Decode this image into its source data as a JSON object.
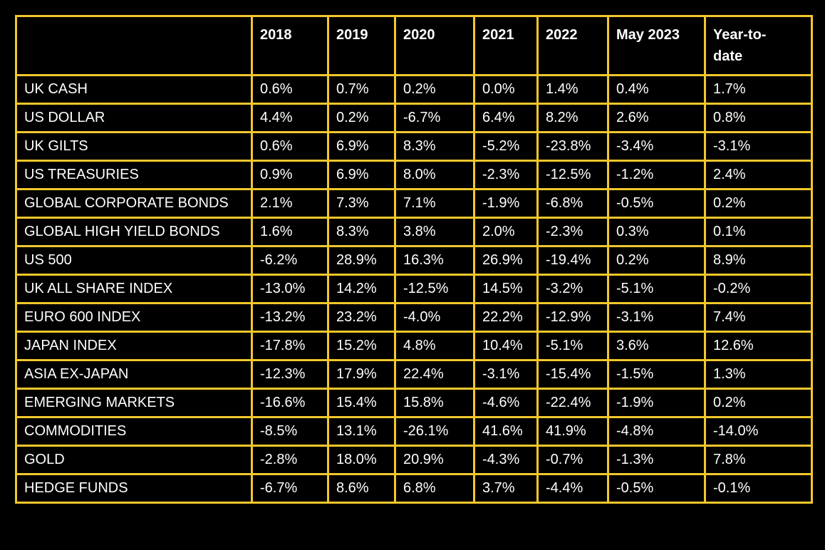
{
  "table": {
    "colors": {
      "background": "#000000",
      "grid": "#f2c72c",
      "text": "#ffffff"
    },
    "headers": [
      "",
      "2018",
      "2019",
      "2020",
      "2021",
      "2022",
      "May 2023",
      "Year-to-date"
    ],
    "header_wrapped": {
      "year_to_date_line1": "Year-to-",
      "year_to_date_line2": "date"
    },
    "rows": [
      {
        "label": "UK CASH",
        "values": [
          "0.6%",
          "0.7%",
          "0.2%",
          "0.0%",
          "1.4%",
          "0.4%",
          "1.7%"
        ]
      },
      {
        "label": "US DOLLAR",
        "values": [
          "4.4%",
          "0.2%",
          "-6.7%",
          "6.4%",
          "8.2%",
          "2.6%",
          "0.8%"
        ]
      },
      {
        "label": "UK GILTS",
        "values": [
          "0.6%",
          "6.9%",
          "8.3%",
          "-5.2%",
          "-23.8%",
          "-3.4%",
          "-3.1%"
        ]
      },
      {
        "label": "US TREASURIES",
        "values": [
          "0.9%",
          "6.9%",
          "8.0%",
          "-2.3%",
          "-12.5%",
          "-1.2%",
          "2.4%"
        ]
      },
      {
        "label": "GLOBAL CORPORATE BONDS",
        "values": [
          "2.1%",
          "7.3%",
          "7.1%",
          "-1.9%",
          "-6.8%",
          "-0.5%",
          "0.2%"
        ]
      },
      {
        "label": "GLOBAL HIGH YIELD BONDS",
        "values": [
          "1.6%",
          "8.3%",
          "3.8%",
          "2.0%",
          "-2.3%",
          "0.3%",
          "0.1%"
        ]
      },
      {
        "label": "US 500",
        "values": [
          "-6.2%",
          "28.9%",
          "16.3%",
          "26.9%",
          "-19.4%",
          "0.2%",
          "8.9%"
        ]
      },
      {
        "label": "UK ALL SHARE INDEX",
        "values": [
          "-13.0%",
          "14.2%",
          "-12.5%",
          "14.5%",
          "-3.2%",
          "-5.1%",
          "-0.2%"
        ]
      },
      {
        "label": "EURO 600 INDEX",
        "values": [
          "-13.2%",
          "23.2%",
          "-4.0%",
          "22.2%",
          "-12.9%",
          "-3.1%",
          "7.4%"
        ]
      },
      {
        "label": "JAPAN INDEX",
        "values": [
          "-17.8%",
          "15.2%",
          "4.8%",
          "10.4%",
          "-5.1%",
          "3.6%",
          "12.6%"
        ]
      },
      {
        "label": "ASIA EX-JAPAN",
        "values": [
          "-12.3%",
          "17.9%",
          "22.4%",
          "-3.1%",
          "-15.4%",
          "-1.5%",
          "1.3%"
        ]
      },
      {
        "label": "EMERGING MARKETS",
        "values": [
          "-16.6%",
          "15.4%",
          "15.8%",
          "-4.6%",
          "-22.4%",
          "-1.9%",
          "0.2%"
        ]
      },
      {
        "label": "COMMODITIES",
        "values": [
          "-8.5%",
          "13.1%",
          "-26.1%",
          "41.6%",
          "41.9%",
          "-4.8%",
          "-14.0%"
        ]
      },
      {
        "label": "GOLD",
        "values": [
          "-2.8%",
          "18.0%",
          "20.9%",
          "-4.3%",
          "-0.7%",
          "-1.3%",
          "7.8%"
        ]
      },
      {
        "label": "HEDGE FUNDS",
        "values": [
          "-6.7%",
          "8.6%",
          "6.8%",
          "3.7%",
          "-4.4%",
          "-0.5%",
          "-0.1%"
        ]
      }
    ]
  }
}
